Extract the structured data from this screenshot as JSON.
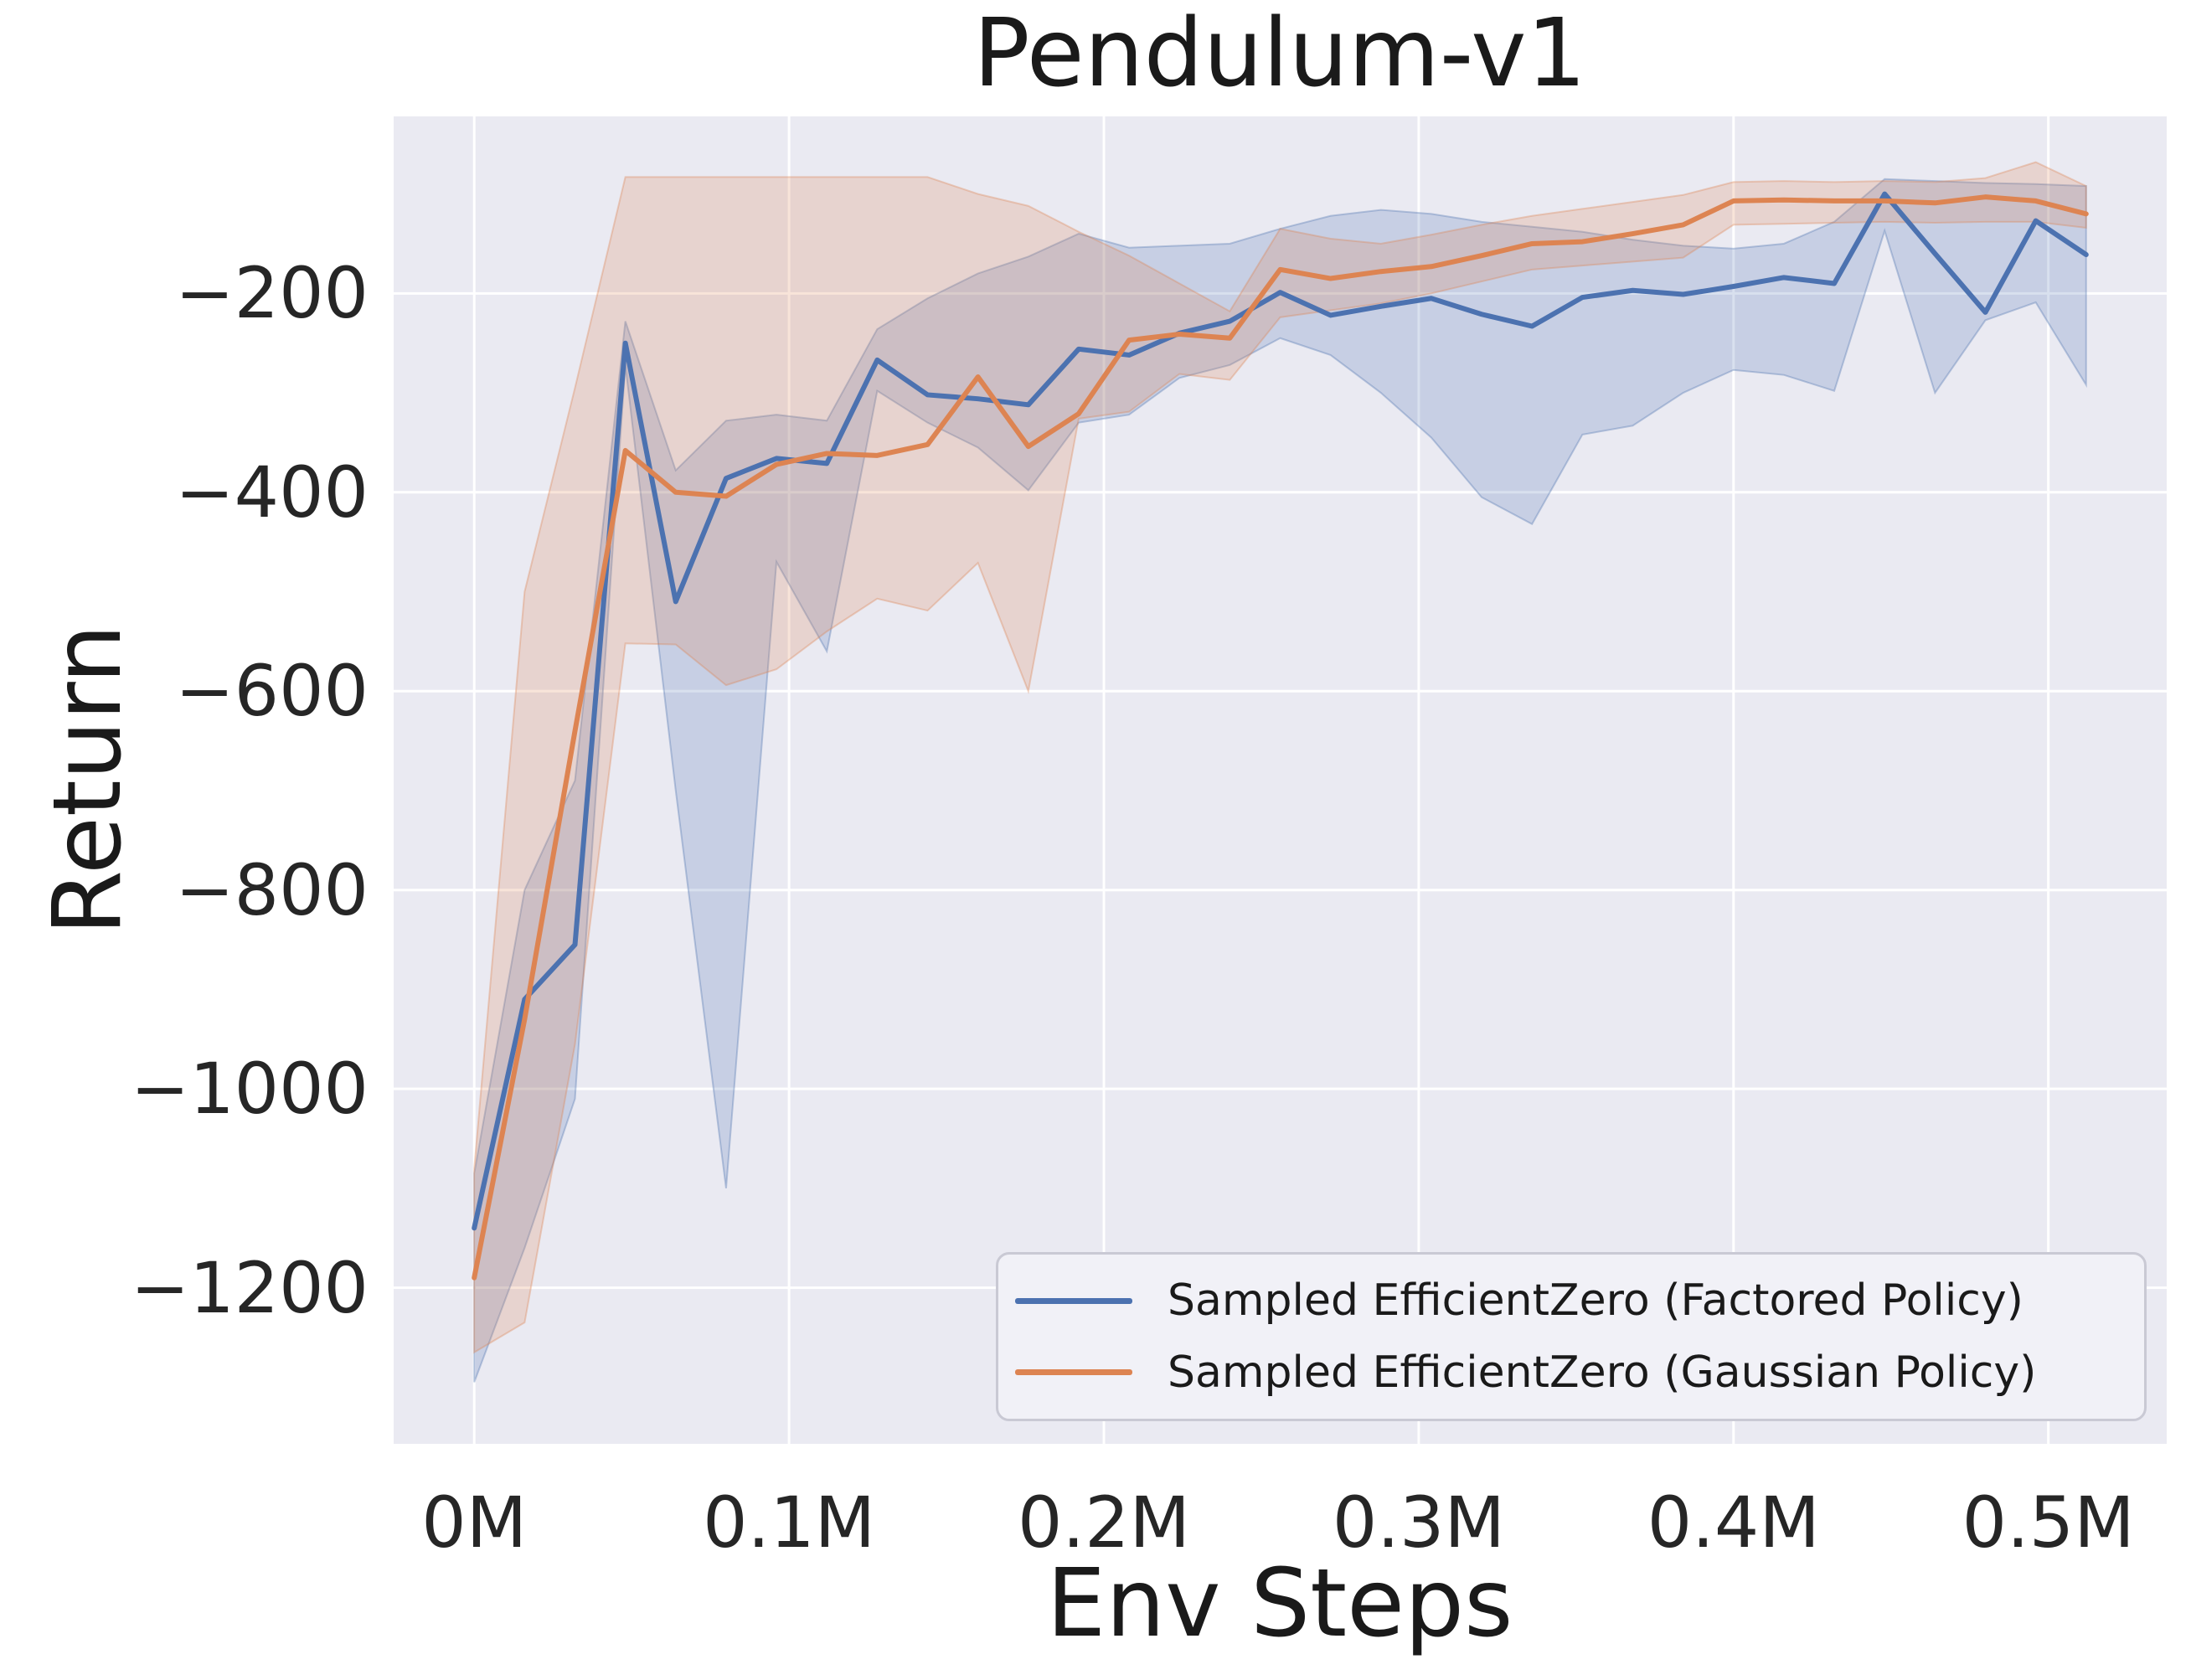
{
  "title": "Pendulum-v1",
  "axes": {
    "x_label": "Env Steps",
    "y_label": "Return",
    "x_ticks": [
      {
        "label": "0M",
        "value": 0.0
      },
      {
        "label": "0.1M",
        "value": 0.1
      },
      {
        "label": "0.2M",
        "value": 0.2
      },
      {
        "label": "0.3M",
        "value": 0.3
      },
      {
        "label": "0.4M",
        "value": 0.4
      },
      {
        "label": "0.5M",
        "value": 0.5
      }
    ],
    "y_ticks": [
      {
        "label": "−200",
        "value": -200
      },
      {
        "label": "−400",
        "value": -400
      },
      {
        "label": "−600",
        "value": -600
      },
      {
        "label": "−800",
        "value": -800
      },
      {
        "label": "−1000",
        "value": -1000
      },
      {
        "label": "−1200",
        "value": -1200
      }
    ]
  },
  "colors": {
    "plot_background": "#EAEAF2",
    "grid_line": "#FFFFFF",
    "text": "#1a1a1a",
    "tick_text": "#262626",
    "factored_policy_blue": "#4C72B0",
    "gaussian_policy_orange": "#DD8452",
    "legend_background": "#f1f1f7",
    "legend_border": "#c9c9d4"
  },
  "chart_data": {
    "type": "line",
    "title": "Pendulum-v1",
    "xlabel": "Env Steps",
    "ylabel": "Return",
    "x_units": "millions of environment steps",
    "xlim": [
      -0.0256,
      0.5376
    ],
    "ylim": [
      -1357,
      -22
    ],
    "grid": true,
    "legend_position": "lower right",
    "shaded_bands": "min-max range across seeds, same color as line at low opacity",
    "x": [
      0.0,
      0.016,
      0.032,
      0.048,
      0.064,
      0.08,
      0.096,
      0.112,
      0.128,
      0.144,
      0.16,
      0.176,
      0.192,
      0.208,
      0.224,
      0.24,
      0.256,
      0.272,
      0.288,
      0.304,
      0.32,
      0.336,
      0.352,
      0.368,
      0.384,
      0.4,
      0.416,
      0.432,
      0.448,
      0.464,
      0.48,
      0.496,
      0.512
    ],
    "series": [
      {
        "name": "Sampled EfficientZero (Factored Policy)",
        "color": "#4C72B0",
        "values": [
          -1140,
          -910,
          -855,
          -250,
          -510,
          -386,
          -366,
          -371,
          -267,
          -302,
          -306,
          -312,
          -256,
          -262,
          -240,
          -228,
          -199,
          -222,
          -213,
          -205,
          -221,
          -233,
          -204,
          -197,
          -201,
          -193,
          -184,
          -190,
          -100,
          -160,
          -219,
          -127,
          -161
        ],
        "band_upper": [
          -1085,
          -800,
          -690,
          -228,
          -378,
          -328,
          -322,
          -328,
          -236,
          -205,
          -180,
          -163,
          -140,
          -154,
          -152,
          -150,
          -135,
          -122,
          -116,
          -120,
          -128,
          -133,
          -138,
          -146,
          -152,
          -155,
          -150,
          -128,
          -85,
          -87,
          -89,
          -90,
          -92
        ],
        "band_lower": [
          -1295,
          -1160,
          -1010,
          -272,
          -700,
          -1100,
          -470,
          -560,
          -298,
          -330,
          -355,
          -398,
          -330,
          -322,
          -285,
          -272,
          -245,
          -262,
          -300,
          -345,
          -405,
          -432,
          -342,
          -333,
          -300,
          -277,
          -282,
          -298,
          -137,
          -300,
          -227,
          -209,
          -292
        ]
      },
      {
        "name": "Sampled EfficientZero (Gaussian Policy)",
        "color": "#DD8452",
        "values": [
          -1190,
          -930,
          -640,
          -358,
          -400,
          -404,
          -372,
          -361,
          -363,
          -352,
          -284,
          -354,
          -321,
          -247,
          -241,
          -245,
          -176,
          -185,
          -178,
          -173,
          -162,
          -150,
          -148,
          -140,
          -131,
          -107,
          -106,
          -107,
          -107,
          -109,
          -103,
          -107,
          -120
        ],
        "band_upper": [
          -1080,
          -500,
          -295,
          -83,
          -83,
          -83,
          -83,
          -83,
          -83,
          -83,
          -100,
          -112,
          -138,
          -162,
          -190,
          -218,
          -135,
          -145,
          -150,
          -141,
          -131,
          -122,
          -115,
          -108,
          -101,
          -88,
          -87,
          -88,
          -87,
          -88,
          -84,
          -68,
          -92
        ],
        "band_lower": [
          -1265,
          -1235,
          -955,
          -552,
          -553,
          -594,
          -578,
          -540,
          -507,
          -519,
          -471,
          -600,
          -326,
          -319,
          -281,
          -287,
          -224,
          -217,
          -210,
          -200,
          -188,
          -176,
          -172,
          -168,
          -164,
          -131,
          -130,
          -129,
          -128,
          -129,
          -128,
          -128,
          -134
        ]
      }
    ]
  }
}
